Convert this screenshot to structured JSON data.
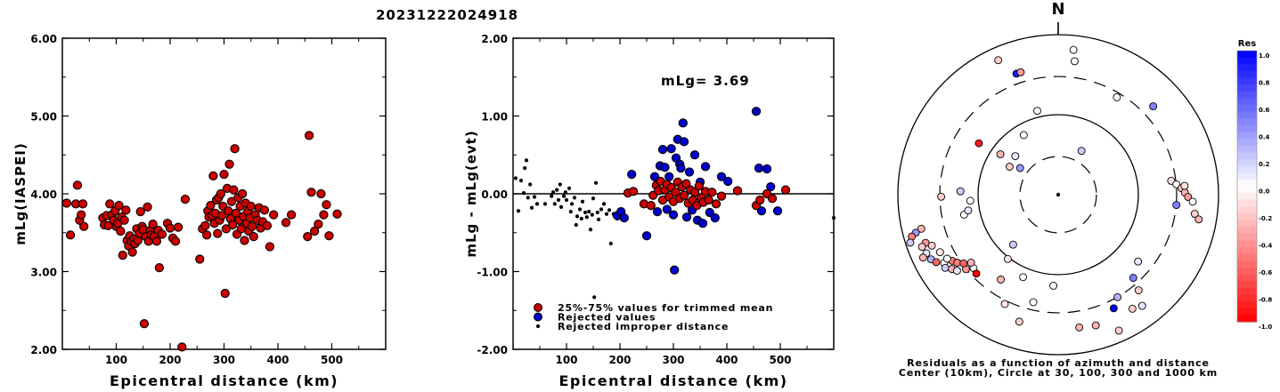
{
  "page_title": "20231222024918",
  "chart_data": [
    {
      "type": "scatter",
      "title": "",
      "xlabel": "Epicentral distance (km)",
      "ylabel": "mLg(IASPEI)",
      "xlim": [
        0,
        600
      ],
      "ylim": [
        2.0,
        6.0
      ],
      "x_ticks": [
        "100",
        "200",
        "300",
        "400",
        "500"
      ],
      "y_ticks": [
        "2.00",
        "3.00",
        "4.00",
        "5.00",
        "6.00"
      ],
      "marker_color": "#cc0000",
      "points": [
        [
          8,
          3.88
        ],
        [
          15,
          3.47
        ],
        [
          25,
          3.87
        ],
        [
          28,
          4.11
        ],
        [
          32,
          3.66
        ],
        [
          35,
          3.73
        ],
        [
          38,
          3.87
        ],
        [
          40,
          3.58
        ],
        [
          75,
          3.69
        ],
        [
          78,
          3.6
        ],
        [
          82,
          3.72
        ],
        [
          85,
          3.59
        ],
        [
          88,
          3.87
        ],
        [
          92,
          3.73
        ],
        [
          95,
          3.66
        ],
        [
          98,
          3.78
        ],
        [
          100,
          3.58
        ],
        [
          103,
          3.62
        ],
        [
          105,
          3.85
        ],
        [
          108,
          3.52
        ],
        [
          110,
          3.7
        ],
        [
          112,
          3.21
        ],
        [
          115,
          3.66
        ],
        [
          118,
          3.79
        ],
        [
          120,
          3.4
        ],
        [
          123,
          3.33
        ],
        [
          125,
          3.46
        ],
        [
          128,
          3.39
        ],
        [
          130,
          3.25
        ],
        [
          133,
          3.42
        ],
        [
          135,
          3.36
        ],
        [
          138,
          3.55
        ],
        [
          140,
          3.4
        ],
        [
          143,
          3.49
        ],
        [
          145,
          3.77
        ],
        [
          148,
          3.58
        ],
        [
          150,
          3.54
        ],
        [
          152,
          2.33
        ],
        [
          155,
          3.45
        ],
        [
          158,
          3.83
        ],
        [
          160,
          3.39
        ],
        [
          163,
          3.53
        ],
        [
          165,
          3.47
        ],
        [
          168,
          3.61
        ],
        [
          170,
          3.45
        ],
        [
          175,
          3.39
        ],
        [
          178,
          3.53
        ],
        [
          180,
          3.05
        ],
        [
          185,
          3.48
        ],
        [
          195,
          3.62
        ],
        [
          200,
          3.56
        ],
        [
          205,
          3.43
        ],
        [
          210,
          3.39
        ],
        [
          215,
          3.57
        ],
        [
          222,
          2.03
        ],
        [
          228,
          3.93
        ],
        [
          255,
          3.16
        ],
        [
          260,
          3.55
        ],
        [
          265,
          3.59
        ],
        [
          268,
          3.47
        ],
        [
          270,
          3.78
        ],
        [
          272,
          3.7
        ],
        [
          275,
          3.85
        ],
        [
          278,
          3.72
        ],
        [
          280,
          4.23
        ],
        [
          282,
          3.62
        ],
        [
          284,
          3.75
        ],
        [
          286,
          3.92
        ],
        [
          288,
          3.49
        ],
        [
          290,
          3.95
        ],
        [
          292,
          3.66
        ],
        [
          294,
          4.0
        ],
        [
          296,
          3.72
        ],
        [
          298,
          3.84
        ],
        [
          300,
          4.25
        ],
        [
          302,
          2.72
        ],
        [
          304,
          3.55
        ],
        [
          306,
          4.07
        ],
        [
          308,
          3.78
        ],
        [
          310,
          4.38
        ],
        [
          312,
          3.68
        ],
        [
          314,
          3.9
        ],
        [
          316,
          3.6
        ],
        [
          318,
          4.05
        ],
        [
          320,
          4.58
        ],
        [
          322,
          3.75
        ],
        [
          324,
          3.48
        ],
        [
          326,
          3.95
        ],
        [
          328,
          3.66
        ],
        [
          330,
          3.84
        ],
        [
          332,
          3.55
        ],
        [
          334,
          4.0
        ],
        [
          336,
          3.71
        ],
        [
          338,
          3.4
        ],
        [
          340,
          3.88
        ],
        [
          342,
          3.62
        ],
        [
          344,
          3.77
        ],
        [
          346,
          3.52
        ],
        [
          348,
          3.69
        ],
        [
          350,
          3.84
        ],
        [
          352,
          3.58
        ],
        [
          355,
          3.45
        ],
        [
          358,
          3.73
        ],
        [
          362,
          3.66
        ],
        [
          365,
          3.82
        ],
        [
          368,
          3.56
        ],
        [
          372,
          3.64
        ],
        [
          375,
          3.79
        ],
        [
          380,
          3.59
        ],
        [
          385,
          3.32
        ],
        [
          392,
          3.73
        ],
        [
          415,
          3.63
        ],
        [
          425,
          3.73
        ],
        [
          455,
          3.45
        ],
        [
          458,
          4.75
        ],
        [
          462,
          4.02
        ],
        [
          468,
          3.52
        ],
        [
          475,
          3.61
        ],
        [
          480,
          4.0
        ],
        [
          485,
          3.73
        ],
        [
          490,
          3.86
        ],
        [
          495,
          3.46
        ],
        [
          510,
          3.74
        ]
      ]
    },
    {
      "type": "scatter",
      "title": "",
      "xlabel": "Epicentral distance (km)",
      "ylabel": "mLg - mLg(evt)",
      "xlim": [
        0,
        600
      ],
      "ylim": [
        -2.0,
        2.0
      ],
      "x_ticks": [
        "100",
        "200",
        "300",
        "400",
        "500"
      ],
      "y_ticks": [
        "-2.00",
        "-1.00",
        "0.00",
        "1.00",
        "2.00"
      ],
      "annotation": "mLg= 3.69",
      "legend": [
        {
          "label": "25%-75% values for trimmed mean",
          "color": "#cc0000",
          "marker": "circle"
        },
        {
          "label": "Rejected values",
          "color": "#0000cc",
          "marker": "circle"
        },
        {
          "label": "Rejected improper distance",
          "color": "#000000",
          "marker": "dot"
        }
      ],
      "series_trimmed": [
        [
          215,
          0.01
        ],
        [
          225,
          0.03
        ],
        [
          245,
          -0.13
        ],
        [
          258,
          -0.15
        ],
        [
          262,
          -0.02
        ],
        [
          268,
          0.11
        ],
        [
          272,
          0.04
        ],
        [
          276,
          0.16
        ],
        [
          280,
          -0.08
        ],
        [
          284,
          0.05
        ],
        [
          288,
          0.12
        ],
        [
          292,
          -0.04
        ],
        [
          296,
          0.08
        ],
        [
          300,
          -0.1
        ],
        [
          304,
          0.02
        ],
        [
          308,
          0.15
        ],
        [
          312,
          -0.06
        ],
        [
          316,
          0.09
        ],
        [
          320,
          -0.02
        ],
        [
          324,
          0.13
        ],
        [
          328,
          -0.12
        ],
        [
          332,
          0.05
        ],
        [
          336,
          -0.08
        ],
        [
          340,
          0.02
        ],
        [
          344,
          -0.15
        ],
        [
          348,
          0.1
        ],
        [
          352,
          -0.05
        ],
        [
          356,
          -0.11
        ],
        [
          360,
          0.03
        ],
        [
          366,
          -0.08
        ],
        [
          372,
          0.02
        ],
        [
          380,
          -0.13
        ],
        [
          390,
          -0.03
        ],
        [
          420,
          0.04
        ],
        [
          455,
          -0.15
        ],
        [
          462,
          -0.08
        ],
        [
          475,
          0.0
        ],
        [
          485,
          -0.06
        ],
        [
          510,
          0.05
        ]
      ],
      "series_rejected": [
        [
          195,
          -0.28
        ],
        [
          202,
          -0.23
        ],
        [
          208,
          -0.31
        ],
        [
          222,
          0.25
        ],
        [
          250,
          -0.54
        ],
        [
          265,
          0.22
        ],
        [
          270,
          -0.23
        ],
        [
          275,
          0.36
        ],
        [
          280,
          0.57
        ],
        [
          284,
          0.34
        ],
        [
          288,
          -0.2
        ],
        [
          292,
          0.22
        ],
        [
          296,
          0.58
        ],
        [
          300,
          -0.27
        ],
        [
          302,
          -0.98
        ],
        [
          305,
          0.46
        ],
        [
          308,
          0.7
        ],
        [
          312,
          0.38
        ],
        [
          314,
          0.33
        ],
        [
          318,
          0.91
        ],
        [
          320,
          0.67
        ],
        [
          325,
          -0.3
        ],
        [
          330,
          0.28
        ],
        [
          335,
          -0.21
        ],
        [
          340,
          0.5
        ],
        [
          345,
          -0.34
        ],
        [
          350,
          0.15
        ],
        [
          355,
          -0.38
        ],
        [
          360,
          0.35
        ],
        [
          368,
          -0.24
        ],
        [
          378,
          -0.31
        ],
        [
          390,
          0.22
        ],
        [
          402,
          0.16
        ],
        [
          455,
          1.06
        ],
        [
          460,
          0.33
        ],
        [
          465,
          -0.22
        ],
        [
          475,
          0.32
        ],
        [
          482,
          0.09
        ],
        [
          495,
          -0.22
        ]
      ],
      "series_improper": [
        [
          5,
          0.2
        ],
        [
          10,
          -0.22
        ],
        [
          15,
          0.17
        ],
        [
          20,
          0.01
        ],
        [
          22,
          0.33
        ],
        [
          25,
          0.43
        ],
        [
          28,
          -0.05
        ],
        [
          32,
          0.12
        ],
        [
          35,
          -0.18
        ],
        [
          40,
          -0.04
        ],
        [
          45,
          -0.13
        ],
        [
          60,
          -0.13
        ],
        [
          72,
          -0.03
        ],
        [
          75,
          0.02
        ],
        [
          78,
          -0.13
        ],
        [
          82,
          0.05
        ],
        [
          85,
          -0.08
        ],
        [
          88,
          0.12
        ],
        [
          90,
          -0.17
        ],
        [
          95,
          -0.03
        ],
        [
          98,
          0.02
        ],
        [
          100,
          -0.08
        ],
        [
          105,
          0.07
        ],
        [
          108,
          -0.23
        ],
        [
          110,
          -0.13
        ],
        [
          115,
          -0.05
        ],
        [
          118,
          -0.4
        ],
        [
          120,
          -0.29
        ],
        [
          125,
          -0.2
        ],
        [
          128,
          -0.32
        ],
        [
          130,
          -0.1
        ],
        [
          135,
          -0.24
        ],
        [
          138,
          -0.3
        ],
        [
          142,
          -0.23
        ],
        [
          145,
          -0.46
        ],
        [
          148,
          -0.27
        ],
        [
          150,
          -0.06
        ],
        [
          152,
          -1.33
        ],
        [
          155,
          0.14
        ],
        [
          158,
          -0.24
        ],
        [
          160,
          -0.33
        ],
        [
          165,
          -0.2
        ],
        [
          170,
          -0.13
        ],
        [
          175,
          -0.26
        ],
        [
          180,
          -0.21
        ],
        [
          183,
          -0.64
        ],
        [
          188,
          -0.26
        ],
        [
          195,
          -0.32
        ],
        [
          600,
          -0.31
        ]
      ]
    },
    {
      "type": "polar-scatter",
      "north_label": "N",
      "caption_line1": "Residuals as a function of azimuth and distance",
      "caption_line2": "Center (10km), Circle at 30, 100, 300 and 1000 km",
      "colorbar_title": "Res",
      "colorbar_ticks": [
        "1.0",
        "0.8",
        "0.6",
        "0.4",
        "0.2",
        "0.0",
        "-0.2",
        "-0.4",
        "-0.6",
        "-0.8",
        "-1.0"
      ],
      "colorbar_positive_color": "#0000ff",
      "colorbar_negative_color": "#ff0000",
      "station_points_az_r_res": [
        [
          336,
          0.92,
          -0.2
        ],
        [
          341,
          0.8,
          0.9
        ],
        [
          343,
          0.8,
          -0.4
        ],
        [
          6,
          0.91,
          0.0
        ],
        [
          7,
          0.84,
          0.0
        ],
        [
          303,
          0.59,
          -0.9
        ],
        [
          305,
          0.44,
          -0.3
        ],
        [
          300,
          0.35,
          -0.2
        ],
        [
          305,
          0.29,
          0.4
        ],
        [
          312,
          0.36,
          0.1
        ],
        [
          330,
          0.43,
          0.0
        ],
        [
          346,
          0.54,
          0.0
        ],
        [
          31,
          0.71,
          0.0
        ],
        [
          28,
          0.31,
          0.2
        ],
        [
          47,
          0.81,
          0.5
        ],
        [
          258,
          0.6,
          0.0
        ],
        [
          260,
          0.57,
          0.1
        ],
        [
          266,
          0.55,
          0.0
        ],
        [
          269,
          0.73,
          -0.2
        ],
        [
          272,
          0.61,
          0.2
        ],
        [
          256,
          0.88,
          -0.3
        ],
        [
          255,
          0.92,
          0.4
        ],
        [
          254,
          0.95,
          -0.5
        ],
        [
          252,
          0.97,
          0.2
        ],
        [
          250,
          0.88,
          -0.4
        ],
        [
          249,
          0.91,
          -0.2
        ],
        [
          246,
          0.9,
          0.1
        ],
        [
          245,
          0.93,
          -0.3
        ],
        [
          243,
          0.89,
          0.3
        ],
        [
          241,
          0.87,
          -0.6
        ],
        [
          239,
          0.83,
          0.0
        ],
        [
          237,
          0.84,
          0.2
        ],
        [
          235,
          0.81,
          -0.3
        ],
        [
          238,
          0.78,
          -0.5
        ],
        [
          233,
          0.79,
          0.1
        ],
        [
          231,
          0.74,
          -0.4
        ],
        [
          229,
          0.7,
          0.0
        ],
        [
          226,
          0.71,
          -1.0
        ],
        [
          248,
          0.85,
          -0.2
        ],
        [
          244,
          0.82,
          -0.1
        ],
        [
          240,
          0.8,
          0.0
        ],
        [
          236,
          0.76,
          -0.5
        ],
        [
          234,
          0.73,
          -0.6
        ],
        [
          232,
          0.69,
          -0.3
        ],
        [
          83,
          0.71,
          -0.1
        ],
        [
          85,
          0.74,
          0.0
        ],
        [
          87,
          0.77,
          -0.2
        ],
        [
          89,
          0.79,
          -0.3
        ],
        [
          91,
          0.81,
          -0.4
        ],
        [
          93,
          0.84,
          0.0
        ],
        [
          95,
          0.74,
          0.5
        ],
        [
          98,
          0.86,
          -0.2
        ],
        [
          100,
          0.89,
          -0.3
        ],
        [
          86,
          0.79,
          -0.1
        ],
        [
          183,
          0.57,
          0.0
        ],
        [
          193,
          0.69,
          0.0
        ],
        [
          203,
          0.56,
          0.0
        ],
        [
          218,
          0.51,
          -0.1
        ],
        [
          222,
          0.42,
          0.2
        ],
        [
          171,
          0.84,
          -0.3
        ],
        [
          164,
          0.85,
          -0.3
        ],
        [
          156,
          0.93,
          -0.2
        ],
        [
          147,
          0.85,
          -0.2
        ],
        [
          140,
          0.78,
          -0.2
        ],
        [
          130,
          0.65,
          0.1
        ],
        [
          138,
          0.7,
          0.5
        ],
        [
          150,
          0.74,
          0.3
        ],
        [
          154,
          0.79,
          1.0
        ],
        [
          197,
          0.83,
          -0.2
        ],
        [
          206,
          0.76,
          -0.1
        ],
        [
          214,
          0.64,
          -0.3
        ],
        [
          143,
          0.87,
          0.1
        ]
      ]
    }
  ]
}
